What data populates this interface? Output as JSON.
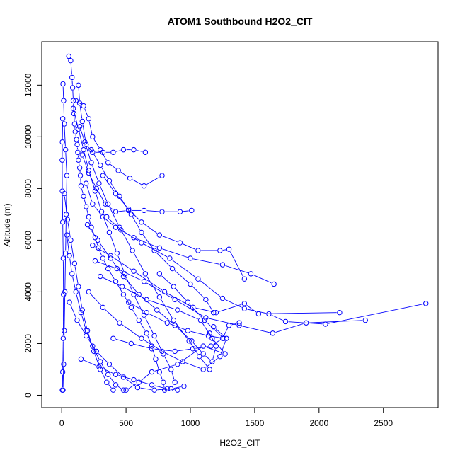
{
  "chart_data": {
    "type": "scatter",
    "title": "ATOM1 Southbound H2O2_CIT",
    "xlabel": "H2O2_CIT",
    "ylabel": "Altitude (m)",
    "xlim": [
      -155,
      2925
    ],
    "ylim": [
      -480,
      13680
    ],
    "xticks": [
      0,
      500,
      1000,
      1500,
      2000,
      2500
    ],
    "yticks": [
      0,
      2000,
      4000,
      6000,
      8000,
      10000,
      12000
    ],
    "grid": false,
    "legend": "none",
    "marker": "open-circle",
    "connected": true,
    "color": "#0000ff",
    "series": [
      {
        "segments": [
          [
            [
              55,
              13120
            ],
            [
              70,
              12950
            ],
            [
              80,
              12300
            ],
            [
              85,
              11900
            ],
            [
              90,
              11400
            ],
            [
              95,
              10900
            ],
            [
              100,
              10500
            ],
            [
              105,
              10200
            ],
            [
              115,
              9900
            ],
            [
              120,
              9700
            ],
            [
              125,
              9400
            ],
            [
              130,
              9100
            ],
            [
              140,
              8800
            ],
            [
              145,
              8500
            ],
            [
              150,
              8100
            ],
            [
              170,
              7700
            ],
            [
              190,
              7300
            ],
            [
              210,
              6900
            ],
            [
              230,
              6500
            ],
            [
              260,
              6100
            ],
            [
              285,
              5700
            ],
            [
              320,
              5300
            ],
            [
              360,
              4900
            ],
            [
              420,
              4400
            ],
            [
              480,
              3900
            ],
            [
              540,
              3400
            ],
            [
              600,
              2900
            ],
            [
              660,
              2400
            ],
            [
              700,
              1900
            ],
            [
              730,
              1400
            ],
            [
              760,
              900
            ],
            [
              790,
              500
            ],
            [
              800,
              200
            ]
          ],
          [
            [
              10,
              200
            ],
            [
              15,
              1200
            ],
            [
              20,
              2500
            ],
            [
              25,
              4000
            ],
            [
              30,
              5500
            ],
            [
              35,
              7000
            ],
            [
              40,
              8500
            ],
            [
              30,
              9500
            ],
            [
              20,
              10500
            ],
            [
              15,
              11400
            ],
            [
              10,
              12050
            ]
          ],
          [
            [
              130,
              12000
            ],
            [
              140,
              11300
            ],
            [
              160,
              10600
            ],
            [
              190,
              9700
            ],
            [
              240,
              9400
            ],
            [
              320,
              9400
            ],
            [
              400,
              9400
            ],
            [
              480,
              9500
            ],
            [
              560,
              9500
            ],
            [
              650,
              9400
            ]
          ],
          [
            [
              110,
              11400
            ],
            [
              170,
              11200
            ],
            [
              210,
              10700
            ],
            [
              240,
              10000
            ],
            [
              300,
              9500
            ],
            [
              360,
              9000
            ],
            [
              440,
              8700
            ],
            [
              530,
              8400
            ],
            [
              640,
              8100
            ],
            [
              780,
              8500
            ]
          ],
          [
            [
              160,
              9300
            ],
            [
              210,
              8600
            ],
            [
              270,
              8000
            ],
            [
              340,
              7400
            ],
            [
              420,
              7100
            ],
            [
              520,
              7150
            ],
            [
              640,
              7150
            ],
            [
              780,
              7100
            ],
            [
              920,
              7100
            ],
            [
              1010,
              7150
            ]
          ],
          [
            [
              190,
              8200
            ],
            [
              240,
              7400
            ],
            [
              320,
              6900
            ],
            [
              420,
              6500
            ],
            [
              560,
              6100
            ],
            [
              760,
              5700
            ],
            [
              1000,
              5300
            ],
            [
              1250,
              5050
            ],
            [
              1470,
              4700
            ],
            [
              1650,
              4300
            ]
          ],
          [
            [
              350,
              6900
            ],
            [
              460,
              6400
            ],
            [
              620,
              5900
            ],
            [
              840,
              5300
            ],
            [
              1060,
              4500
            ],
            [
              1250,
              3750
            ],
            [
              1420,
              3350
            ],
            [
              1610,
              3150
            ],
            [
              1740,
              2850
            ],
            [
              2050,
              2750
            ],
            [
              2830,
              3550
            ]
          ],
          [
            [
              240,
              5800
            ],
            [
              380,
              5400
            ],
            [
              560,
              4800
            ],
            [
              800,
              4000
            ],
            [
              1020,
              3400
            ],
            [
              1200,
              3200
            ],
            [
              1420,
              3550
            ],
            [
              1530,
              3150
            ],
            [
              2160,
              3200
            ]
          ],
          [
            [
              260,
              5200
            ],
            [
              430,
              4900
            ],
            [
              640,
              4400
            ],
            [
              880,
              3700
            ],
            [
              1120,
              3000
            ],
            [
              1380,
              2700
            ],
            [
              1640,
              2400
            ],
            [
              1900,
              2800
            ],
            [
              2360,
              2900
            ]
          ],
          [
            [
              300,
              4600
            ],
            [
              470,
              4200
            ],
            [
              660,
              3700
            ],
            [
              900,
              3300
            ],
            [
              1080,
              2900
            ],
            [
              1170,
              2200
            ],
            [
              1270,
              1600
            ],
            [
              1100,
              1900
            ],
            [
              900,
              1200
            ],
            [
              700,
              900
            ],
            [
              600,
              500
            ],
            [
              500,
              200
            ]
          ],
          [
            [
              210,
              4000
            ],
            [
              320,
              3400
            ],
            [
              450,
              2800
            ],
            [
              620,
              2200
            ],
            [
              780,
              1700
            ],
            [
              940,
              1300
            ],
            [
              1100,
              1000
            ],
            [
              1230,
              1500
            ],
            [
              1280,
              2200
            ],
            [
              1180,
              2650
            ]
          ],
          [
            [
              60,
              3600
            ],
            [
              120,
              2900
            ],
            [
              190,
              2300
            ],
            [
              270,
              1700
            ],
            [
              370,
              1200
            ],
            [
              480,
              700
            ],
            [
              590,
              300
            ],
            [
              720,
              200
            ],
            [
              850,
              250
            ],
            [
              950,
              350
            ]
          ],
          [
            [
              40,
              6200
            ],
            [
              60,
              5400
            ],
            [
              80,
              4700
            ],
            [
              110,
              4000
            ],
            [
              150,
              3200
            ],
            [
              190,
              2500
            ],
            [
              240,
              1900
            ],
            [
              300,
              1300
            ],
            [
              360,
              800
            ],
            [
              420,
              400
            ],
            [
              480,
              200
            ]
          ],
          [
            [
              20,
              7800
            ],
            [
              45,
              6800
            ],
            [
              70,
              6000
            ],
            [
              100,
              5100
            ],
            [
              130,
              4200
            ],
            [
              160,
              3300
            ],
            [
              200,
              2500
            ],
            [
              250,
              1700
            ],
            [
              300,
              1000
            ],
            [
              350,
              500
            ],
            [
              400,
              200
            ]
          ],
          [
            [
              230,
              9500
            ],
            [
              300,
              8900
            ],
            [
              370,
              8300
            ],
            [
              450,
              7700
            ],
            [
              540,
              7000
            ],
            [
              620,
              6300
            ],
            [
              720,
              5600
            ],
            [
              860,
              4900
            ],
            [
              1000,
              4300
            ],
            [
              1120,
              3700
            ],
            [
              1180,
              3200
            ]
          ],
          [
            [
              320,
              8500
            ],
            [
              420,
              7800
            ],
            [
              520,
              7200
            ],
            [
              620,
              6700
            ],
            [
              760,
              6200
            ],
            [
              920,
              5900
            ],
            [
              1060,
              5600
            ],
            [
              1230,
              5600
            ],
            [
              1300,
              5650
            ],
            [
              1420,
              4500
            ]
          ],
          [
            [
              140,
              10400
            ],
            [
              180,
              9800
            ],
            [
              230,
              9000
            ],
            [
              290,
              8200
            ],
            [
              360,
              7400
            ],
            [
              450,
              6500
            ],
            [
              550,
              5600
            ],
            [
              650,
              4700
            ],
            [
              760,
              3800
            ],
            [
              870,
              2900
            ],
            [
              990,
              2100
            ],
            [
              1070,
              1500
            ],
            [
              1150,
              1000
            ]
          ],
          [
            [
              90,
              11100
            ],
            [
              130,
              10300
            ],
            [
              170,
              9500
            ],
            [
              210,
              8700
            ],
            [
              260,
              7900
            ],
            [
              310,
              7100
            ],
            [
              370,
              6300
            ],
            [
              430,
              5500
            ],
            [
              490,
              4700
            ],
            [
              560,
              3900
            ],
            [
              640,
              3100
            ],
            [
              720,
              2300
            ],
            [
              790,
              1600
            ],
            [
              850,
              1000
            ],
            [
              880,
              500
            ]
          ],
          [
            [
              200,
              6600
            ],
            [
              280,
              6000
            ],
            [
              380,
              5300
            ],
            [
              480,
              4600
            ],
            [
              600,
              3900
            ],
            [
              740,
              3300
            ],
            [
              880,
              2700
            ],
            [
              1010,
              2100
            ],
            [
              1100,
              1600
            ],
            [
              1170,
              1300
            ],
            [
              1200,
              1900
            ],
            [
              1150,
              2400
            ]
          ],
          [
            [
              520,
              3600
            ],
            [
              660,
              3200
            ],
            [
              820,
              2800
            ],
            [
              980,
              2500
            ],
            [
              1140,
              2300
            ],
            [
              1260,
              2200
            ],
            [
              1110,
              2900
            ],
            [
              980,
              3600
            ],
            [
              870,
              4200
            ],
            [
              760,
              4700
            ]
          ],
          [
            [
              5,
              200
            ],
            [
              8,
              900
            ],
            [
              12,
              2200
            ],
            [
              14,
              3900
            ],
            [
              12,
              5300
            ],
            [
              8,
              6700
            ],
            [
              5,
              7900
            ],
            [
              4,
              9100
            ],
            [
              5,
              9800
            ],
            [
              8,
              10700
            ]
          ],
          [
            [
              150,
              1400
            ],
            [
              290,
              1100
            ],
            [
              420,
              800
            ],
            [
              560,
              600
            ],
            [
              700,
              400
            ],
            [
              820,
              250
            ],
            [
              900,
              200
            ]
          ],
          [
            [
              400,
              2200
            ],
            [
              540,
              2000
            ],
            [
              700,
              1800
            ],
            [
              880,
              1700
            ],
            [
              1020,
              1800
            ],
            [
              1160,
              1900
            ],
            [
              1250,
              2200
            ],
            [
              1300,
              2700
            ],
            [
              1380,
              2800
            ]
          ]
        ]
      }
    ]
  }
}
